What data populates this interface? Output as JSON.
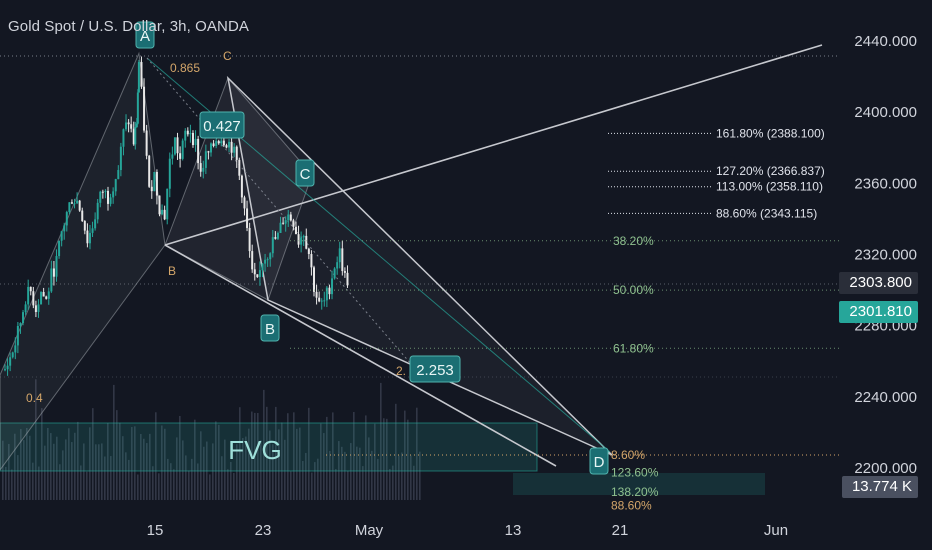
{
  "header": {
    "title": "Gold Spot / U.S. Dollar, 3h, OANDA"
  },
  "price_tags": {
    "last_close": "2303.800",
    "current": "2301.810",
    "volume": "13.774 K"
  },
  "colors": {
    "background": "#131722",
    "candle": "#26a69a",
    "fib_text": "#8fc18f",
    "ext_text": "#e0e3eb",
    "pattern_line": "#c6c8ce",
    "label_box": "#1b6e73",
    "fvg": "#26a69a",
    "orange_text": "#d4a66a"
  },
  "chart_data": {
    "type": "candlestick",
    "title": "Gold Spot / U.S. Dollar, 3h, OANDA",
    "yaxis": {
      "ticks": [
        "2440.000",
        "2400.000",
        "2360.000",
        "2320.000",
        "2280.000",
        "2240.000",
        "2200.000"
      ],
      "range": [
        2190,
        2460
      ]
    },
    "xaxis": {
      "ticks": [
        "15",
        "23",
        "May",
        "13",
        "21",
        "Jun"
      ]
    },
    "price_path": [
      [
        0,
        2255
      ],
      [
        0.5,
        2262
      ],
      [
        1,
        2270
      ],
      [
        1.5,
        2282
      ],
      [
        2,
        2296
      ],
      [
        2.5,
        2299
      ],
      [
        3,
        2290
      ],
      [
        3.5,
        2299
      ],
      [
        4,
        2294
      ],
      [
        4.5,
        2308
      ],
      [
        5,
        2316
      ],
      [
        5.5,
        2332
      ],
      [
        6,
        2343
      ],
      [
        6.5,
        2352
      ],
      [
        7,
        2350
      ],
      [
        7.5,
        2342
      ],
      [
        8,
        2328
      ],
      [
        8.5,
        2336
      ],
      [
        9,
        2348
      ],
      [
        9.5,
        2356
      ],
      [
        10,
        2352
      ],
      [
        10.5,
        2360
      ],
      [
        11,
        2368
      ],
      [
        11.5,
        2388
      ],
      [
        12,
        2395
      ],
      [
        12.5,
        2383
      ],
      [
        12.8,
        2395
      ],
      [
        13,
        2428
      ],
      [
        13.5,
        2392
      ],
      [
        14,
        2355
      ],
      [
        14.5,
        2365
      ],
      [
        15,
        2347
      ],
      [
        15.5,
        2342
      ],
      [
        16,
        2372
      ],
      [
        16.5,
        2384
      ],
      [
        17,
        2373
      ],
      [
        17.5,
        2388
      ],
      [
        18,
        2390
      ],
      [
        18.5,
        2382
      ],
      [
        19,
        2366
      ],
      [
        19.5,
        2375
      ],
      [
        20,
        2378
      ],
      [
        20.5,
        2385
      ],
      [
        21,
        2386
      ],
      [
        21.5,
        2384
      ],
      [
        22,
        2381
      ],
      [
        22.5,
        2372
      ],
      [
        23,
        2356
      ],
      [
        23.5,
        2333
      ],
      [
        24,
        2308
      ],
      [
        24.5,
        2303
      ],
      [
        25,
        2317
      ],
      [
        25.5,
        2321
      ],
      [
        26,
        2327
      ],
      [
        26.5,
        2330
      ],
      [
        27,
        2340
      ],
      [
        27.5,
        2342
      ],
      [
        28,
        2339
      ],
      [
        28.5,
        2328
      ],
      [
        29,
        2333
      ],
      [
        29.5,
        2321
      ],
      [
        30,
        2302
      ],
      [
        30.5,
        2291
      ],
      [
        31,
        2293
      ],
      [
        31.5,
        2302
      ],
      [
        32,
        2314
      ],
      [
        32.5,
        2321
      ],
      [
        33,
        2307
      ],
      [
        33.5,
        2304
      ]
    ],
    "horizontal_levels": [
      {
        "label": "38.20%",
        "value": 2327.7
      },
      {
        "label": "50.00%",
        "value": 2300.0
      },
      {
        "label": "61.80%",
        "value": 2267.3
      }
    ],
    "extension_levels": [
      {
        "label": "161.80% (2388.100)",
        "value": 2388.1
      },
      {
        "label": "127.20% (2366.837)",
        "value": 2366.8
      },
      {
        "label": "113.00% (2358.110)",
        "value": 2358.1
      },
      {
        "label": "88.60% (2343.115)",
        "value": 2343.1
      }
    ],
    "lower_levels": [
      {
        "label": "8.60%",
        "value": 2207.6
      },
      {
        "label": "123.60%",
        "value": 2197.4
      },
      {
        "label": "138.20%",
        "value": 2186.6
      },
      {
        "label": "88.60%",
        "value": 2179.0
      }
    ],
    "pattern_points": [
      {
        "label": "A",
        "t": 13,
        "value": 2433
      },
      {
        "label": "B",
        "t": 24,
        "value": 2296
      },
      {
        "label": "C",
        "t": 28,
        "value": 2353
      },
      {
        "label": "D",
        "t": 49,
        "value": 2208
      }
    ],
    "ratios": [
      "0.427",
      "2.253",
      "0.865",
      "0.4"
    ],
    "annotations": [
      "FVG",
      "B",
      "C"
    ],
    "volume_last": "13.774 K"
  }
}
